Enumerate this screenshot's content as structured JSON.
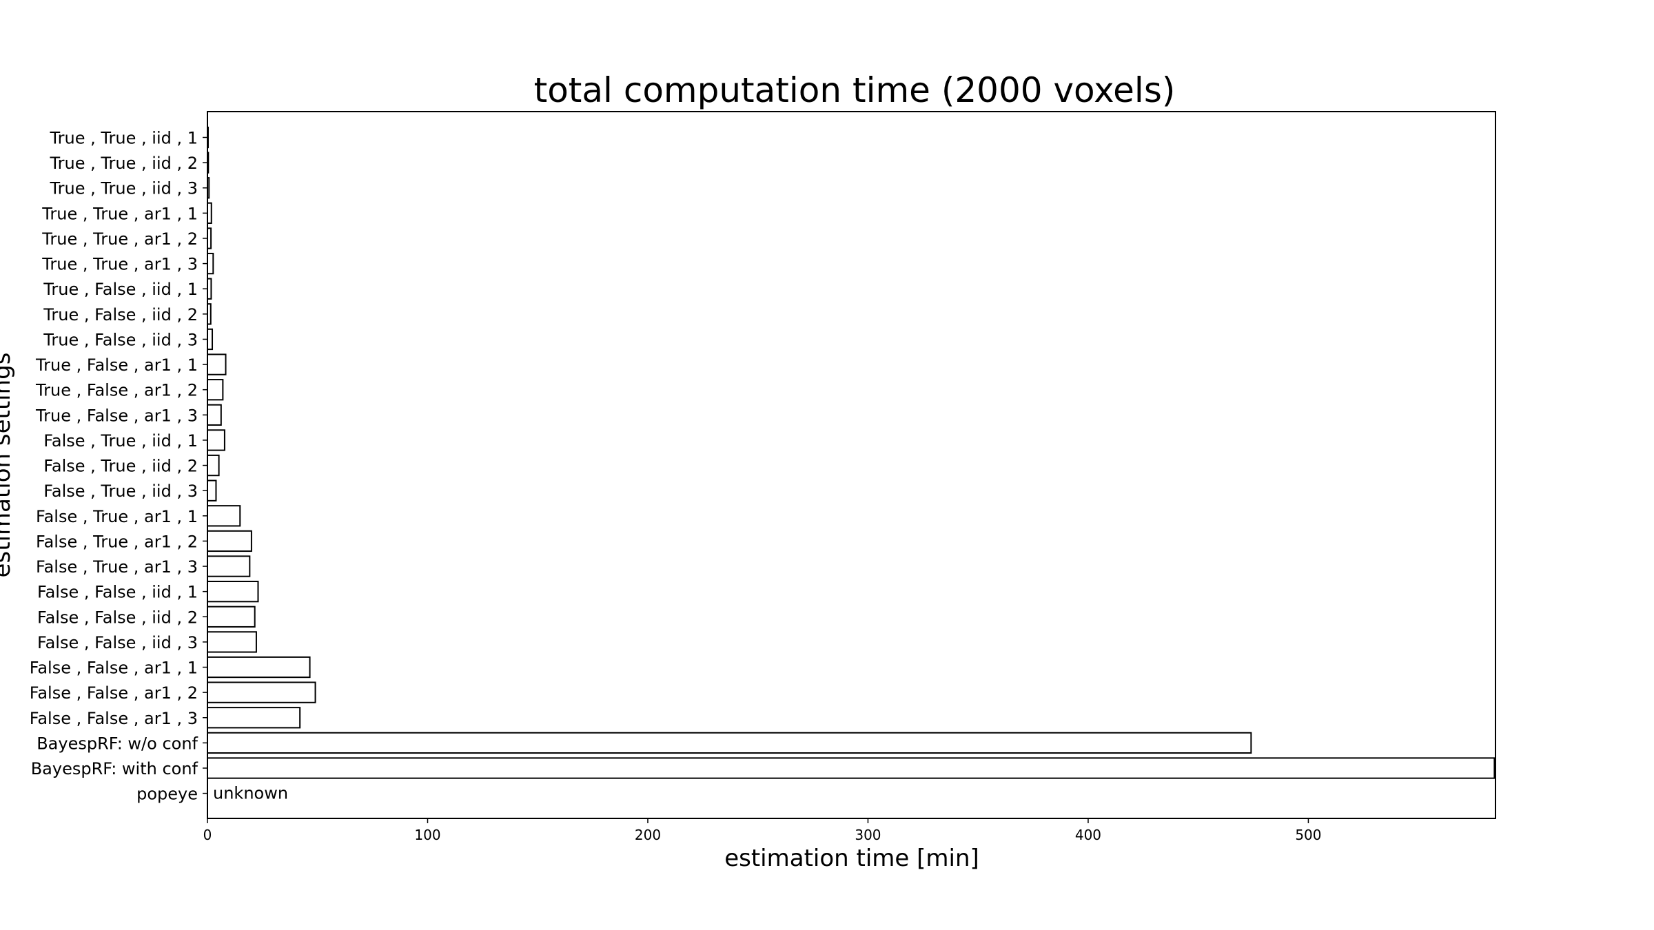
{
  "chart_data": {
    "type": "bar",
    "orientation": "horizontal",
    "title": "total computation time (2000 voxels)",
    "xlabel": "estimation time [min]",
    "ylabel": "estimation settings",
    "xlim": [
      0,
      585
    ],
    "xticks": [
      0,
      100,
      200,
      300,
      400,
      500
    ],
    "grid": false,
    "bar_fill": "#ffffff",
    "bar_edge": "#000000",
    "categories": [
      "True , True , iid , 1",
      "True , True , iid , 2",
      "True , True , iid , 3",
      "True , True , ar1 , 1",
      "True , True , ar1 , 2",
      "True , True , ar1 , 3",
      "True , False , iid , 1",
      "True , False , iid , 2",
      "True , False , iid , 3",
      "True , False , ar1 , 1",
      "True , False , ar1 , 2",
      "True , False , ar1 , 3",
      "False , True , iid , 1",
      "False , True , iid , 2",
      "False , True , iid , 3",
      "False , True , ar1 , 1",
      "False , True , ar1 , 2",
      "False , True , ar1 , 3",
      "False , False , iid , 1",
      "False , False , iid , 2",
      "False , False , iid , 3",
      "False , False , ar1 , 1",
      "False , False , ar1 , 2",
      "False , False , ar1 , 3",
      "BayespRF: w/o conf",
      "BayespRF: with conf",
      "popeye"
    ],
    "values": [
      0.3,
      0.4,
      0.7,
      1.8,
      1.6,
      2.6,
      1.7,
      1.5,
      2.2,
      8.3,
      7.0,
      6.2,
      7.8,
      5.2,
      3.9,
      14.8,
      20.0,
      19.2,
      23.0,
      21.5,
      22.2,
      46.5,
      49.0,
      42.0,
      474.0,
      584.5,
      null
    ],
    "annotations": [
      {
        "category": "popeye",
        "text": "unknown"
      }
    ]
  }
}
